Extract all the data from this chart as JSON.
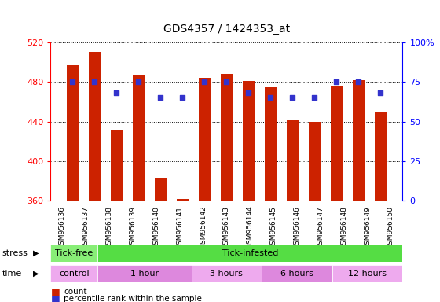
{
  "title": "GDS4357 / 1424353_at",
  "samples": [
    "GSM956136",
    "GSM956137",
    "GSM956138",
    "GSM956139",
    "GSM956140",
    "GSM956141",
    "GSM956142",
    "GSM956143",
    "GSM956144",
    "GSM956145",
    "GSM956146",
    "GSM956147",
    "GSM956148",
    "GSM956149",
    "GSM956150"
  ],
  "bar_values": [
    497,
    510,
    432,
    487,
    383,
    362,
    484,
    488,
    481,
    475,
    441,
    440,
    476,
    482,
    449
  ],
  "bar_bottom": 360,
  "percentile_values": [
    75,
    75,
    68,
    75,
    65,
    65,
    75,
    75,
    68,
    65,
    65,
    65,
    75,
    75,
    68
  ],
  "ylim_left": [
    360,
    520
  ],
  "ylim_right": [
    0,
    100
  ],
  "yticks_left": [
    360,
    400,
    440,
    480,
    520
  ],
  "yticks_right": [
    0,
    25,
    50,
    75,
    100
  ],
  "bar_color": "#CC2200",
  "dot_color": "#3333CC",
  "plot_bg_color": "#FFFFFF",
  "tick_label_bg": "#DDDDDD",
  "stress_groups": [
    {
      "label": "Tick-free",
      "start": 0,
      "end": 2,
      "color": "#88EE77"
    },
    {
      "label": "Tick-infested",
      "start": 2,
      "end": 15,
      "color": "#55DD44"
    }
  ],
  "time_groups": [
    {
      "label": "control",
      "start": 0,
      "end": 2,
      "color": "#EEAAEE"
    },
    {
      "label": "1 hour",
      "start": 2,
      "end": 6,
      "color": "#DD88DD"
    },
    {
      "label": "3 hours",
      "start": 6,
      "end": 9,
      "color": "#EEAAEE"
    },
    {
      "label": "6 hours",
      "start": 9,
      "end": 12,
      "color": "#DD88DD"
    },
    {
      "label": "12 hours",
      "start": 12,
      "end": 15,
      "color": "#EEAAEE"
    }
  ],
  "legend_count_label": "count",
  "legend_pct_label": "percentile rank within the sample",
  "stress_label": "stress",
  "time_label": "time",
  "ytick_right_labels": [
    "0",
    "25",
    "50",
    "75",
    "100%"
  ]
}
